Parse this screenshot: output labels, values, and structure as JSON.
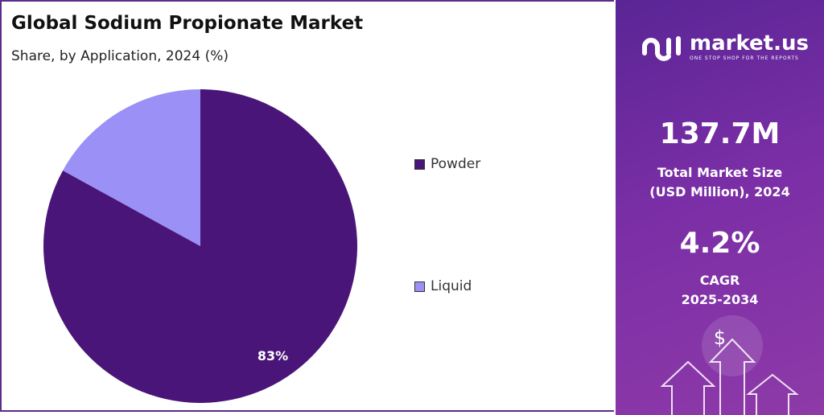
{
  "chart_data": {
    "type": "pie",
    "title": "Global Sodium Propionate Market",
    "subtitle": "Share, by Application, 2024 (%)",
    "categories": [
      "Powder",
      "Liquid"
    ],
    "values": [
      83,
      17
    ],
    "colors": [
      "#4a1578",
      "#9a90f5"
    ],
    "data_labels": [
      "83%",
      ""
    ],
    "legend_placement": "right"
  },
  "panel": {
    "brand": "market.us",
    "tagline": "ONE STOP SHOP FOR THE REPORTS",
    "market_size": "137.7M",
    "market_size_label_1": "Total Market Size",
    "market_size_label_2": "(USD Million), 2024",
    "cagr": "4.2%",
    "cagr_label_1": "CAGR",
    "cagr_label_2": "2025-2034",
    "dollar_icon": "$"
  }
}
